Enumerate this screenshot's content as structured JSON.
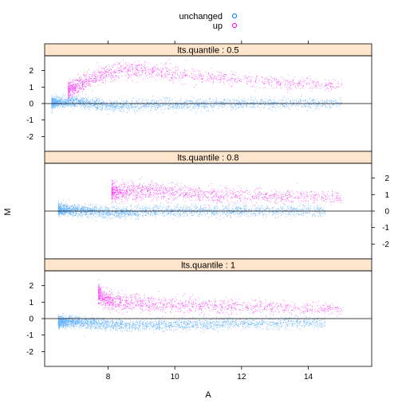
{
  "chart_data": {
    "type": "scatter",
    "xlabel": "A",
    "ylabel": "M",
    "xlim": [
      6.1,
      15.9
    ],
    "ylim": [
      -2.9,
      2.9
    ],
    "x_ticks": [
      8,
      10,
      12,
      14
    ],
    "y_ticks": [
      -2,
      -1,
      0,
      1,
      2
    ],
    "reference_line_y": 0,
    "legend": {
      "placement": "top-center",
      "entries": [
        {
          "label": "unchanged",
          "color": "#0080ff"
        },
        {
          "label": "up",
          "color": "#ff00ff"
        }
      ]
    },
    "panels": [
      {
        "strip": "lts.quantile : 0.5",
        "series": [
          {
            "name": "up",
            "color": "#ff00ff",
            "points": [
              [
                6.8,
                0.8
              ],
              [
                7.0,
                1.0
              ],
              [
                7.3,
                1.3
              ],
              [
                7.6,
                1.55
              ],
              [
                8.0,
                1.8
              ],
              [
                8.5,
                2.0
              ],
              [
                9.0,
                2.0
              ],
              [
                9.5,
                1.9
              ],
              [
                10.0,
                1.8
              ],
              [
                11.0,
                1.6
              ],
              [
                12.0,
                1.45
              ],
              [
                13.0,
                1.3
              ],
              [
                14.0,
                1.2
              ],
              [
                15.0,
                1.1
              ]
            ]
          },
          {
            "name": "unchanged",
            "color": "#0080ff",
            "points": [
              [
                6.3,
                0.05
              ],
              [
                6.8,
                0.1
              ],
              [
                7.5,
                0.0
              ],
              [
                8.0,
                -0.15
              ],
              [
                9.0,
                -0.1
              ],
              [
                10.0,
                -0.05
              ],
              [
                11.0,
                -0.05
              ],
              [
                12.0,
                0.0
              ],
              [
                13.0,
                0.0
              ],
              [
                14.0,
                0.0
              ],
              [
                15.0,
                0.0
              ]
            ]
          }
        ]
      },
      {
        "strip": "lts.quantile : 0.8",
        "series": [
          {
            "name": "up",
            "color": "#ff00ff",
            "points": [
              [
                8.1,
                1.1
              ],
              [
                8.5,
                1.2
              ],
              [
                9.0,
                1.2
              ],
              [
                9.5,
                1.15
              ],
              [
                10.0,
                1.1
              ],
              [
                11.0,
                1.0
              ],
              [
                12.0,
                0.95
              ],
              [
                13.0,
                0.9
              ],
              [
                14.0,
                0.9
              ],
              [
                15.0,
                0.85
              ]
            ]
          },
          {
            "name": "unchanged",
            "color": "#0080ff",
            "points": [
              [
                6.5,
                0.1
              ],
              [
                7.5,
                0.0
              ],
              [
                7.9,
                -0.1
              ],
              [
                8.5,
                -0.1
              ],
              [
                9.5,
                0.0
              ],
              [
                10.5,
                0.0
              ],
              [
                11.5,
                0.0
              ],
              [
                12.5,
                0.0
              ],
              [
                13.5,
                0.0
              ],
              [
                14.5,
                0.0
              ]
            ]
          }
        ]
      },
      {
        "strip": "lts.quantile : 1",
        "series": [
          {
            "name": "up",
            "color": "#ff00ff",
            "points": [
              [
                7.7,
                1.6
              ],
              [
                7.9,
                1.2
              ],
              [
                8.3,
                1.0
              ],
              [
                9.0,
                0.9
              ],
              [
                9.5,
                0.85
              ],
              [
                10.0,
                0.8
              ],
              [
                11.0,
                0.75
              ],
              [
                12.0,
                0.7
              ],
              [
                13.0,
                0.65
              ],
              [
                14.0,
                0.6
              ],
              [
                15.0,
                0.55
              ]
            ]
          },
          {
            "name": "unchanged",
            "color": "#0080ff",
            "points": [
              [
                6.5,
                -0.2
              ],
              [
                7.0,
                -0.2
              ],
              [
                7.8,
                -0.3
              ],
              [
                8.5,
                -0.4
              ],
              [
                9.5,
                -0.4
              ],
              [
                10.5,
                -0.35
              ],
              [
                11.5,
                -0.3
              ],
              [
                12.5,
                -0.3
              ],
              [
                13.5,
                -0.25
              ],
              [
                14.5,
                -0.25
              ]
            ]
          }
        ]
      }
    ]
  }
}
